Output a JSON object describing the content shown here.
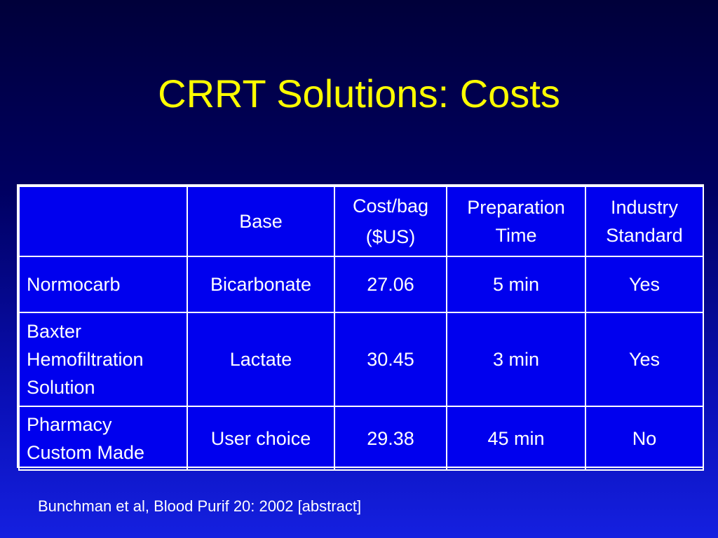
{
  "title": "CRRT Solutions: Costs",
  "table": {
    "headers": [
      "",
      "Base",
      "Cost/bag\n($US)",
      "Preparation\nTime",
      "Industry\nStandard"
    ],
    "rows": [
      [
        "Normocarb",
        "Bicarbonate",
        "27.06",
        "5 min",
        "Yes"
      ],
      [
        "Baxter\nHemofiltration\nSolution",
        "Lactate",
        "30.45",
        "3 min",
        "Yes"
      ],
      [
        "Pharmacy\nCustom Made",
        "User choice",
        "29.38",
        "45 min",
        "No"
      ]
    ]
  },
  "citation": "Bunchman et al, Blood Purif 20: 2002 [abstract]",
  "colors": {
    "title": "#ffff00",
    "table_fill": "#0000ee",
    "background_top": "#00003a",
    "background_bottom": "#1520e0",
    "text": "#ffffff"
  }
}
